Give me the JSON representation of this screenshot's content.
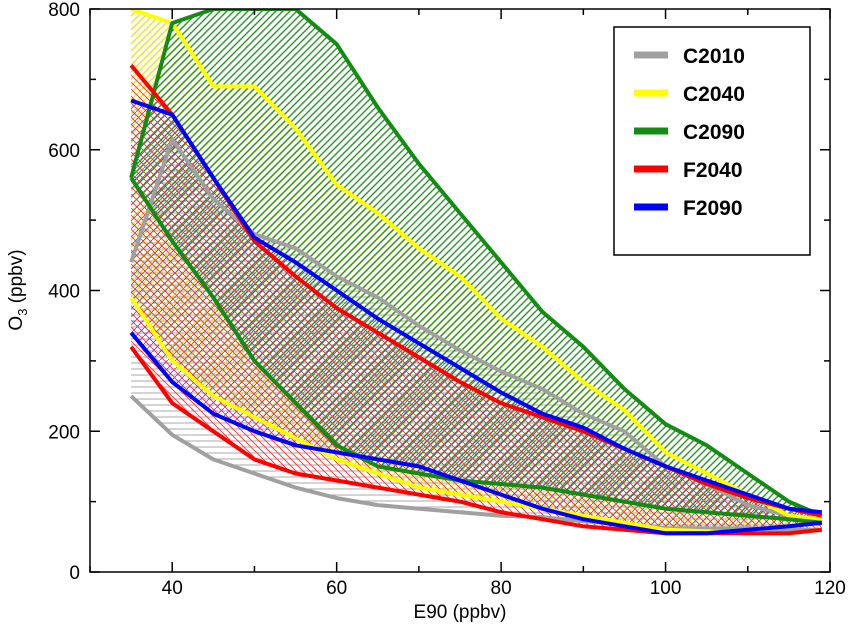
{
  "chart_data": {
    "type": "area",
    "title": "",
    "xlabel": "E90 (ppbv)",
    "ylabel": "O3 (ppbv)",
    "ylabel_main": "O",
    "ylabel_sub": "3",
    "ylabel_rest": " (ppbv)",
    "xlim": [
      30,
      120
    ],
    "ylim": [
      0,
      800
    ],
    "xticks": [
      40,
      60,
      80,
      100,
      120
    ],
    "yticks": [
      0,
      200,
      400,
      600,
      800
    ],
    "grid": false,
    "legend_position": "top-right",
    "x": [
      35,
      40,
      45,
      50,
      55,
      60,
      65,
      70,
      75,
      80,
      85,
      90,
      95,
      100,
      105,
      110,
      115,
      119
    ],
    "series": [
      {
        "name": "C2010",
        "color": "#a0a0a0",
        "hatch": "horizontal",
        "upper": [
          440,
          615,
          530,
          480,
          460,
          420,
          390,
          350,
          315,
          285,
          260,
          225,
          200,
          150,
          125,
          95,
          80,
          70
        ],
        "lower": [
          250,
          195,
          160,
          140,
          120,
          105,
          95,
          90,
          85,
          80,
          78,
          72,
          68,
          62,
          62,
          62,
          60,
          60
        ]
      },
      {
        "name": "C2040",
        "color": "#ffff00",
        "hatch": "diagonal",
        "upper": [
          800,
          780,
          690,
          690,
          630,
          550,
          510,
          460,
          420,
          360,
          320,
          270,
          230,
          170,
          140,
          110,
          80,
          75
        ],
        "lower": [
          390,
          300,
          250,
          220,
          190,
          160,
          140,
          120,
          110,
          100,
          90,
          80,
          70,
          60,
          58,
          55,
          55,
          60
        ]
      },
      {
        "name": "C2090",
        "color": "#148c14",
        "hatch": "diagonal",
        "upper": [
          560,
          780,
          800,
          800,
          800,
          750,
          660,
          580,
          510,
          440,
          370,
          320,
          260,
          210,
          180,
          140,
          100,
          80
        ],
        "lower": [
          560,
          470,
          390,
          300,
          240,
          180,
          150,
          140,
          130,
          125,
          120,
          110,
          100,
          90,
          85,
          80,
          75,
          70
        ]
      },
      {
        "name": "F2040",
        "color": "#ff0000",
        "hatch": "diagonal",
        "upper": [
          720,
          650,
          560,
          470,
          420,
          375,
          340,
          305,
          270,
          240,
          220,
          200,
          175,
          150,
          125,
          105,
          90,
          80
        ],
        "lower": [
          320,
          240,
          200,
          160,
          140,
          130,
          120,
          110,
          100,
          85,
          75,
          65,
          60,
          55,
          55,
          55,
          55,
          60
        ]
      },
      {
        "name": "F2090",
        "color": "#0000ff",
        "hatch": "diagonal",
        "upper": [
          670,
          650,
          560,
          475,
          440,
          400,
          360,
          325,
          290,
          255,
          225,
          205,
          175,
          150,
          130,
          110,
          90,
          85
        ],
        "lower": [
          340,
          270,
          225,
          200,
          180,
          170,
          160,
          150,
          130,
          110,
          90,
          75,
          65,
          55,
          55,
          60,
          65,
          70
        ]
      }
    ]
  }
}
